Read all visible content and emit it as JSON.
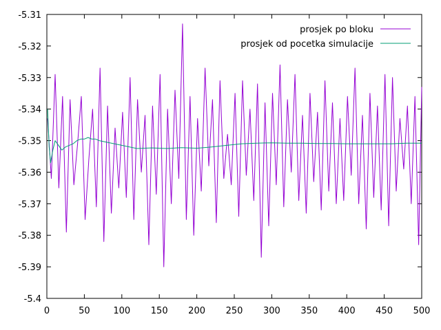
{
  "chart_data": {
    "type": "line",
    "title": "",
    "xlabel": "",
    "ylabel": "",
    "xlim": [
      0,
      500
    ],
    "ylim": [
      -5.4,
      -5.31
    ],
    "x_ticks": [
      0,
      50,
      100,
      150,
      200,
      250,
      300,
      350,
      400,
      450,
      500
    ],
    "y_ticks": [
      -5.31,
      -5.32,
      -5.33,
      -5.34,
      -5.35,
      -5.36,
      -5.37,
      -5.38,
      -5.39,
      -5.4
    ],
    "grid": false,
    "legend_position": "top-right",
    "series": [
      {
        "name": "prosjek po bloku",
        "color": "#9400d3",
        "x": [
          1,
          6,
          11,
          16,
          21,
          26,
          31,
          36,
          41,
          46,
          51,
          56,
          61,
          66,
          71,
          76,
          81,
          86,
          91,
          96,
          101,
          106,
          111,
          116,
          121,
          126,
          131,
          136,
          141,
          146,
          151,
          156,
          161,
          166,
          171,
          176,
          181,
          186,
          191,
          196,
          201,
          206,
          211,
          216,
          221,
          226,
          231,
          236,
          241,
          246,
          251,
          256,
          261,
          266,
          271,
          276,
          281,
          286,
          291,
          296,
          301,
          306,
          311,
          316,
          321,
          326,
          331,
          336,
          341,
          346,
          351,
          356,
          361,
          366,
          371,
          376,
          381,
          386,
          391,
          396,
          401,
          406,
          411,
          416,
          421,
          426,
          431,
          436,
          441,
          446,
          451,
          456,
          461,
          466,
          471,
          476,
          481,
          486,
          491,
          496,
          500
        ],
        "y": [
          -5.343,
          -5.362,
          -5.329,
          -5.365,
          -5.336,
          -5.379,
          -5.337,
          -5.364,
          -5.351,
          -5.336,
          -5.375,
          -5.356,
          -5.34,
          -5.371,
          -5.327,
          -5.382,
          -5.339,
          -5.373,
          -5.346,
          -5.365,
          -5.341,
          -5.368,
          -5.33,
          -5.375,
          -5.337,
          -5.36,
          -5.342,
          -5.383,
          -5.339,
          -5.367,
          -5.329,
          -5.39,
          -5.34,
          -5.37,
          -5.334,
          -5.362,
          -5.313,
          -5.375,
          -5.336,
          -5.38,
          -5.343,
          -5.366,
          -5.327,
          -5.358,
          -5.337,
          -5.376,
          -5.331,
          -5.362,
          -5.348,
          -5.364,
          -5.335,
          -5.374,
          -5.331,
          -5.361,
          -5.34,
          -5.369,
          -5.332,
          -5.387,
          -5.338,
          -5.377,
          -5.335,
          -5.364,
          -5.326,
          -5.371,
          -5.337,
          -5.36,
          -5.329,
          -5.369,
          -5.342,
          -5.373,
          -5.335,
          -5.363,
          -5.341,
          -5.372,
          -5.331,
          -5.366,
          -5.338,
          -5.37,
          -5.343,
          -5.369,
          -5.336,
          -5.361,
          -5.327,
          -5.37,
          -5.342,
          -5.378,
          -5.335,
          -5.368,
          -5.339,
          -5.372,
          -5.329,
          -5.377,
          -5.33,
          -5.366,
          -5.343,
          -5.359,
          -5.339,
          -5.37,
          -5.336,
          -5.383,
          -5.333
        ]
      },
      {
        "name": "prosjek od pocetka simulacije",
        "color": "#009e73",
        "x": [
          1,
          3,
          5,
          8,
          11,
          14,
          17,
          20,
          25,
          30,
          35,
          40,
          45,
          50,
          55,
          60,
          65,
          70,
          80,
          90,
          100,
          120,
          140,
          160,
          180,
          200,
          220,
          240,
          260,
          280,
          300,
          320,
          340,
          360,
          380,
          400,
          420,
          440,
          460,
          480,
          500
        ],
        "y": [
          -5.34,
          -5.352,
          -5.357,
          -5.353,
          -5.35,
          -5.351,
          -5.352,
          -5.353,
          -5.352,
          -5.3515,
          -5.351,
          -5.35,
          -5.3495,
          -5.3495,
          -5.349,
          -5.3495,
          -5.3495,
          -5.35,
          -5.3505,
          -5.351,
          -5.3515,
          -5.3525,
          -5.3523,
          -5.3525,
          -5.3522,
          -5.3524,
          -5.352,
          -5.3515,
          -5.351,
          -5.3508,
          -5.3507,
          -5.3508,
          -5.3508,
          -5.3509,
          -5.3509,
          -5.351,
          -5.351,
          -5.351,
          -5.351,
          -5.3508,
          -5.3508
        ]
      }
    ]
  }
}
